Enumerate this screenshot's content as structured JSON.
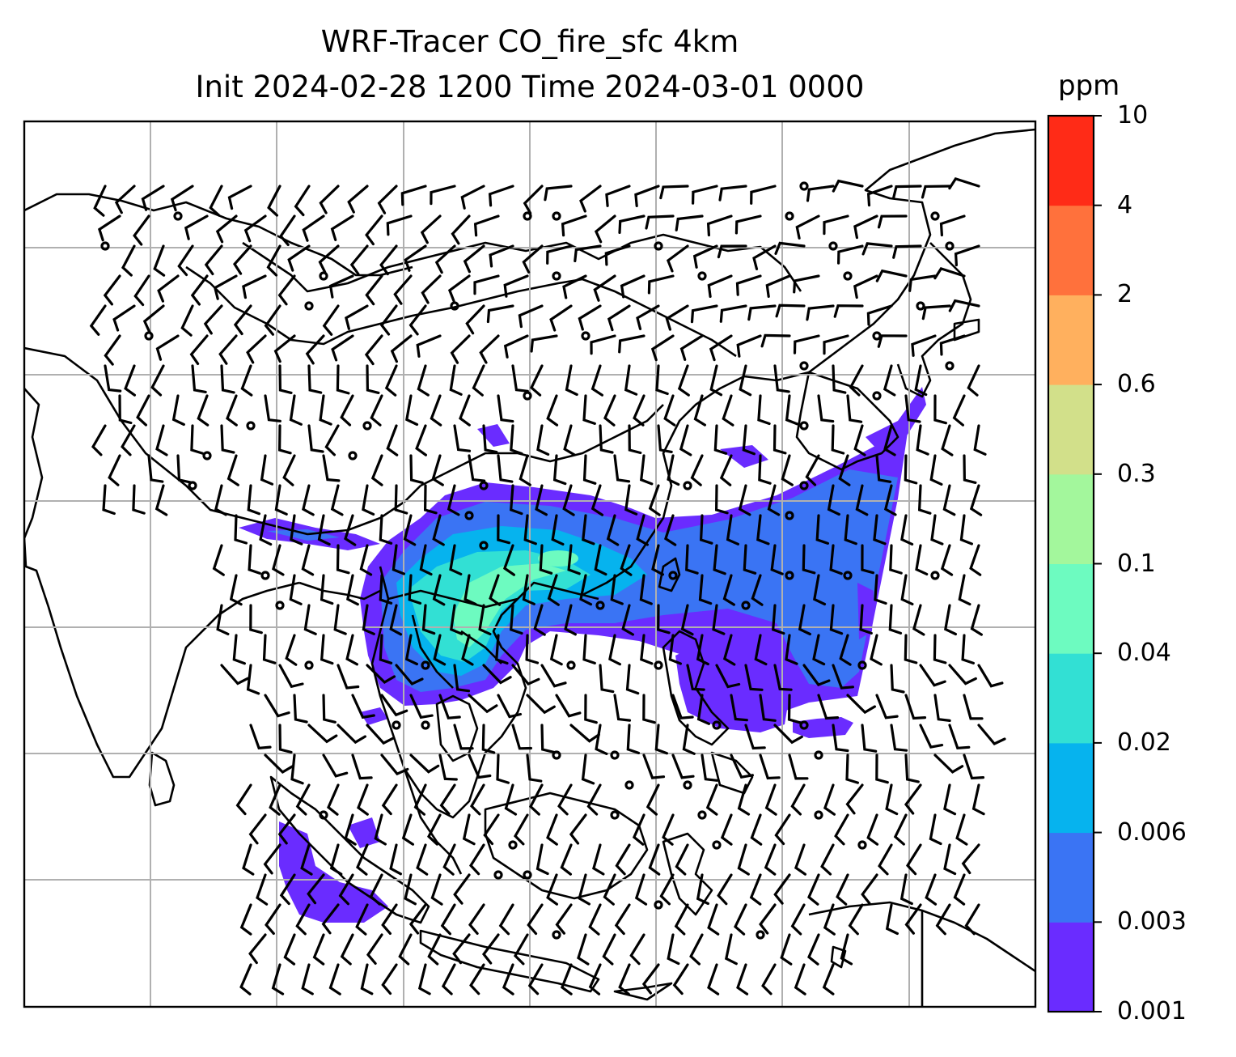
{
  "title": {
    "line1": "WRF-Tracer CO_fire_sfc 4km",
    "line2": "Init 2024-02-28 1200 Time 2024-03-01 0000"
  },
  "colorbar": {
    "units": "ppm",
    "levels": [
      "0.001",
      "0.003",
      "0.006",
      "0.02",
      "0.04",
      "0.1",
      "0.3",
      "0.6",
      "2",
      "4",
      "10"
    ],
    "colors": [
      "#6a2cff",
      "#3a74f4",
      "#06b3ee",
      "#32e0d4",
      "#6dfbc0",
      "#a3f79c",
      "#d2e08a",
      "#ffb05e",
      "#ff713c",
      "#ff2b17"
    ]
  },
  "map": {
    "features": [
      "coastlines",
      "country borders",
      "lat-lon gridlines",
      "wind barbs",
      "CO fire tracer plume"
    ]
  }
}
